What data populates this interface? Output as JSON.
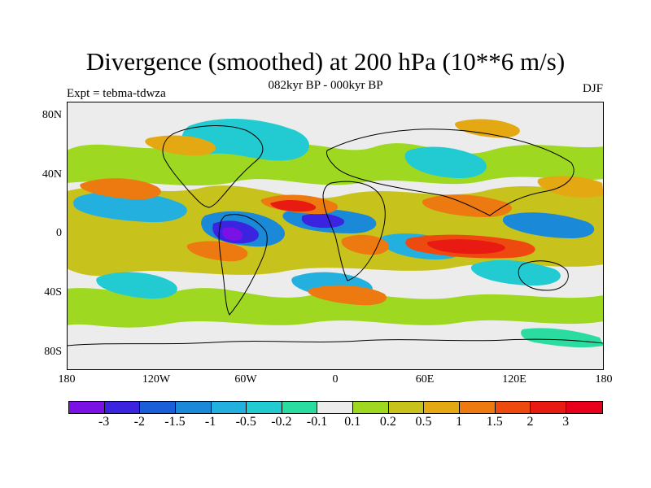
{
  "title": "Divergence (smoothed) at 200 hPa (10**6 m/s)",
  "subtitle": "082kyr BP - 000kyr BP",
  "left_label": "Expt = tebma-tdwza",
  "right_label": "DJF",
  "lat_ticks": [
    "80N",
    "40N",
    "0",
    "40S",
    "80S"
  ],
  "lon_ticks": [
    "180",
    "120W",
    "60W",
    "0",
    "60E",
    "120E",
    "180"
  ],
  "colorbar": {
    "labels": [
      "-3",
      "-2",
      "-1.5",
      "-1",
      "-0.5",
      "-0.2",
      "-0.1",
      "0.1",
      "0.2",
      "0.5",
      "1",
      "1.5",
      "2",
      "3"
    ],
    "colors": [
      "#7a12e6",
      "#3a24e0",
      "#1a5ed8",
      "#1a8ad8",
      "#23b0de",
      "#22cbd2",
      "#2adca0",
      "#ececec",
      "#9ed820",
      "#c8c21c",
      "#e3a812",
      "#ec7a10",
      "#ee4a10",
      "#e81a12",
      "#e8001a"
    ]
  },
  "map": {
    "background_color": "#ececec",
    "lon_range": [
      -180,
      180
    ],
    "lat_range": [
      -90,
      90
    ]
  }
}
